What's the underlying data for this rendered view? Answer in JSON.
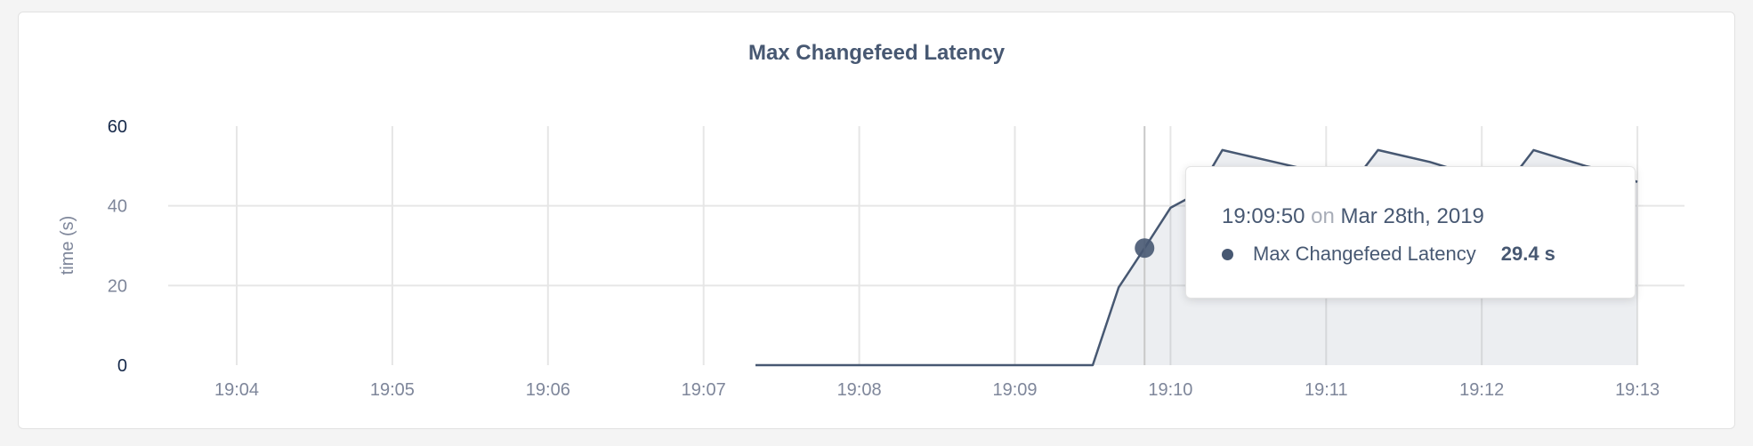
{
  "chart_data": {
    "type": "area",
    "title": "Max Changefeed Latency",
    "ylabel": "time (s)",
    "xlabel": "",
    "ylim": [
      0,
      60
    ],
    "yticks": [
      "0",
      "20",
      "40",
      "60"
    ],
    "xticks": [
      "19:04",
      "19:05",
      "19:06",
      "19:07",
      "19:08",
      "19:09",
      "19:10",
      "19:11",
      "19:12",
      "19:13"
    ],
    "grid": true,
    "series": [
      {
        "name": "Max Changefeed Latency",
        "color": "#475872",
        "x": [
          "19:07:20",
          "19:07:30",
          "19:07:40",
          "19:07:50",
          "19:08:00",
          "19:08:10",
          "19:08:20",
          "19:08:30",
          "19:08:40",
          "19:08:50",
          "19:09:00",
          "19:09:10",
          "19:09:20",
          "19:09:30",
          "19:09:40",
          "19:09:50",
          "19:10:00",
          "19:10:10",
          "19:10:20",
          "19:10:30",
          "19:10:40",
          "19:10:50",
          "19:11:00",
          "19:11:10",
          "19:11:20",
          "19:11:30",
          "19:11:40",
          "19:11:50",
          "19:12:00",
          "19:12:10",
          "19:12:20",
          "19:12:30",
          "19:12:40",
          "19:12:50",
          "19:13:00"
        ],
        "values": [
          0,
          0,
          0,
          0,
          0,
          0,
          0,
          0,
          0,
          0,
          0,
          0,
          0,
          0,
          19.5,
          29.4,
          39.5,
          43,
          54,
          52.5,
          51,
          49.5,
          47.5,
          45.5,
          54,
          52.5,
          51,
          49,
          47,
          45.5,
          54,
          52,
          50,
          48.5,
          46
        ]
      }
    ]
  },
  "tooltip": {
    "time": "19:09:50",
    "on": "on",
    "date": "Mar 28th, 2019",
    "series_name": "Max Changefeed Latency",
    "value": "29.4 s"
  }
}
